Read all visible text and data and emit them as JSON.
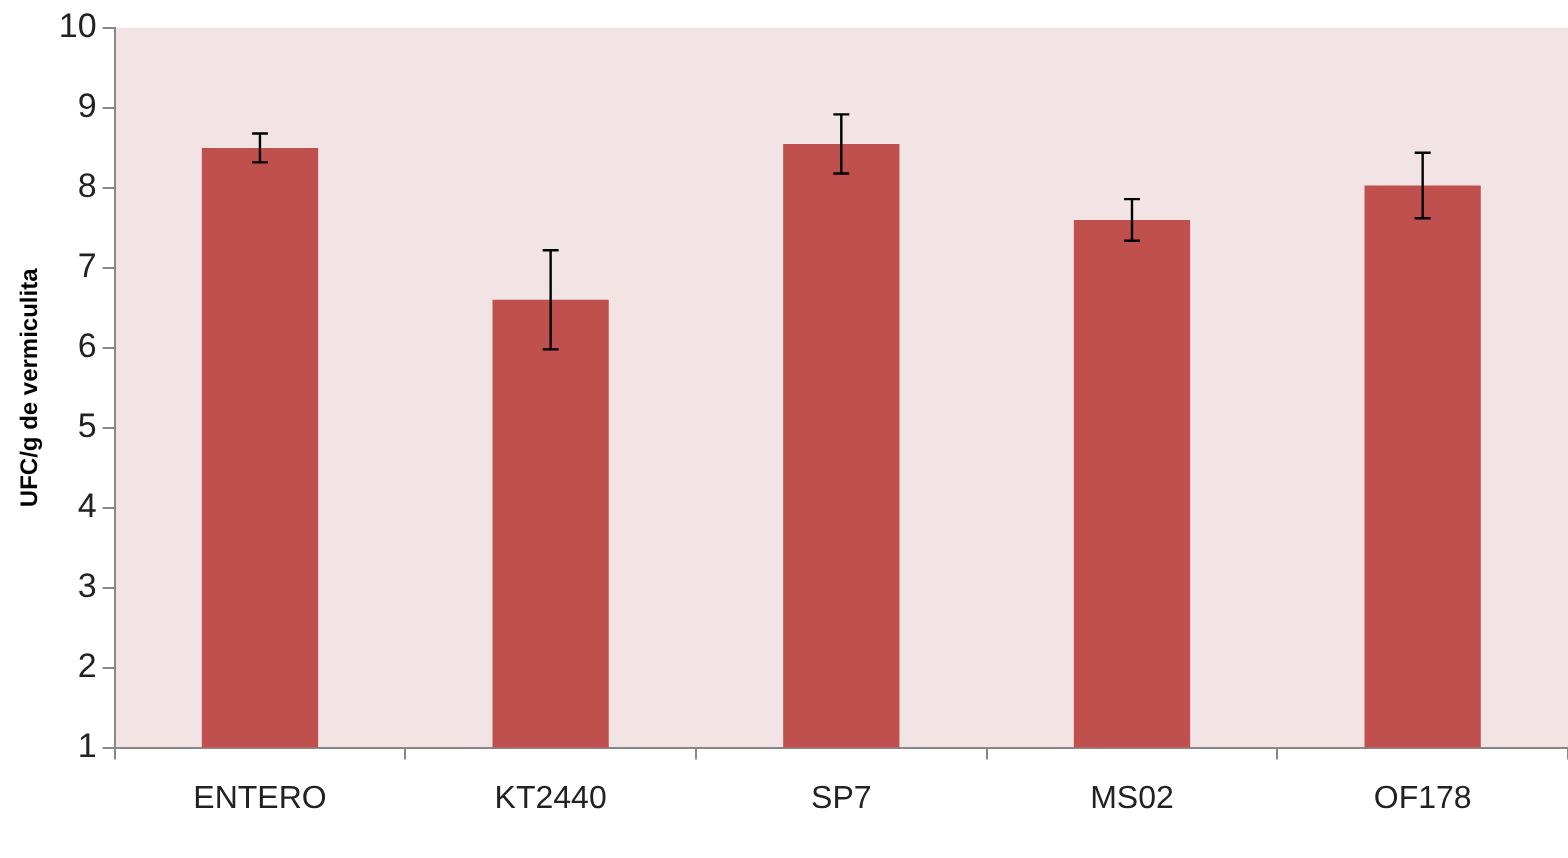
{
  "chart_data": {
    "type": "bar",
    "ylabel": "UFC/g de vermiculita",
    "categories": [
      "ENTERO",
      "KT2440",
      "SP7",
      "MS02",
      "OF178"
    ],
    "values": [
      8.5,
      6.6,
      8.55,
      7.6,
      8.03
    ],
    "errors": [
      0.18,
      0.62,
      0.37,
      0.26,
      0.41
    ],
    "color": "#c0504d",
    "ylim": [
      1,
      10
    ],
    "yticks": [
      1,
      2,
      3,
      4,
      5,
      6,
      7,
      8,
      9,
      10
    ],
    "grid": false,
    "legend": false
  }
}
